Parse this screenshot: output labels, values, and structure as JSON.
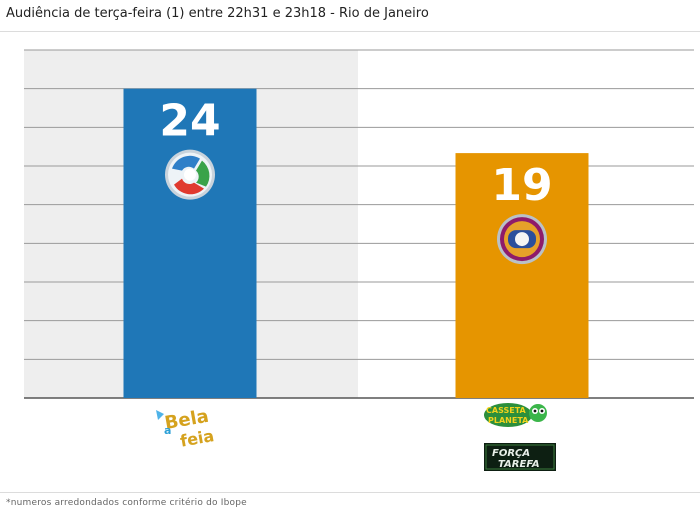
{
  "title": "Audiência de terça-feira (1) entre 22h31 e 23h18 - Rio de Janeiro",
  "footnote": "*numeros arredondados conforme critério do Ibope",
  "chart_data": {
    "type": "bar",
    "categories": [
      "Record - Bela a Feia",
      "Globo - Casseta & Planeta / Força-Tarefa"
    ],
    "values": [
      24,
      19
    ],
    "value_labels": [
      "24",
      "19"
    ],
    "ylim": [
      0,
      27
    ],
    "grid": true,
    "bar_colors": [
      "#1f77b7",
      "#e69500"
    ],
    "highlight_background": "#eeeeee",
    "icons": [
      "record-logo-icon",
      "globo-logo-icon",
      "bela-a-feia-logo-icon",
      "casseta-e-planeta-logo-icon",
      "forca-tarefa-logo-icon"
    ]
  }
}
